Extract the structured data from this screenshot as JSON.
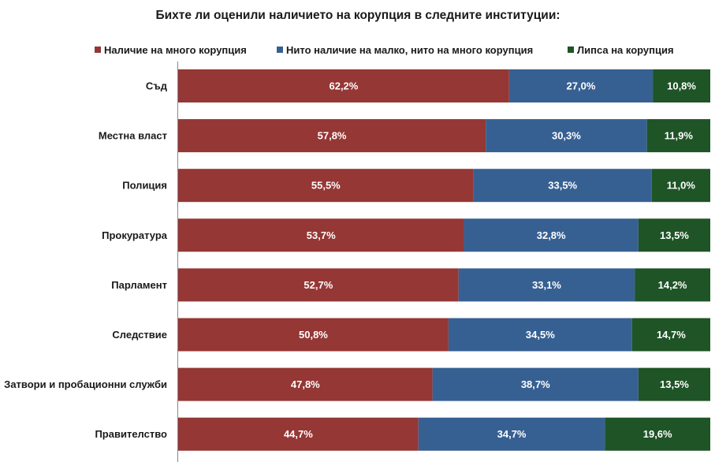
{
  "chart_data": {
    "type": "bar",
    "orientation": "horizontal",
    "stacked": "percent",
    "title": "Бихте ли оценили наличието на корупция в следните институции:",
    "legend_position": "top",
    "grid": false,
    "categories": [
      "Съд",
      "Местна власт",
      "Полиция",
      "Прокуратура",
      "Парламент",
      "Следствие",
      "Затвори и пробационни служби",
      "Правителство"
    ],
    "series": [
      {
        "name": "Наличие на много корупция",
        "color": "#953735",
        "values": [
          62.2,
          57.8,
          55.5,
          53.7,
          52.7,
          50.8,
          47.8,
          44.7
        ],
        "labels": [
          "62,2%",
          "57,8%",
          "55,5%",
          "53,7%",
          "52,7%",
          "50,8%",
          "47,8%",
          "44,7%"
        ]
      },
      {
        "name": "Нито наличие на малко, нито на много корупция",
        "color": "#376092",
        "values": [
          27.0,
          30.3,
          33.5,
          32.8,
          33.1,
          34.5,
          38.7,
          34.7
        ],
        "labels": [
          "27,0%",
          "30,3%",
          "33,5%",
          "32,8%",
          "33,1%",
          "34,5%",
          "38,7%",
          "34,7%"
        ]
      },
      {
        "name": "Липса на корупция",
        "color": "#1f5426",
        "values": [
          10.8,
          11.9,
          11.0,
          13.5,
          14.2,
          14.7,
          13.5,
          19.6
        ],
        "labels": [
          "10,8%",
          "11,9%",
          "11,0%",
          "13,5%",
          "14,2%",
          "14,7%",
          "13,5%",
          "19,6%"
        ]
      }
    ]
  }
}
